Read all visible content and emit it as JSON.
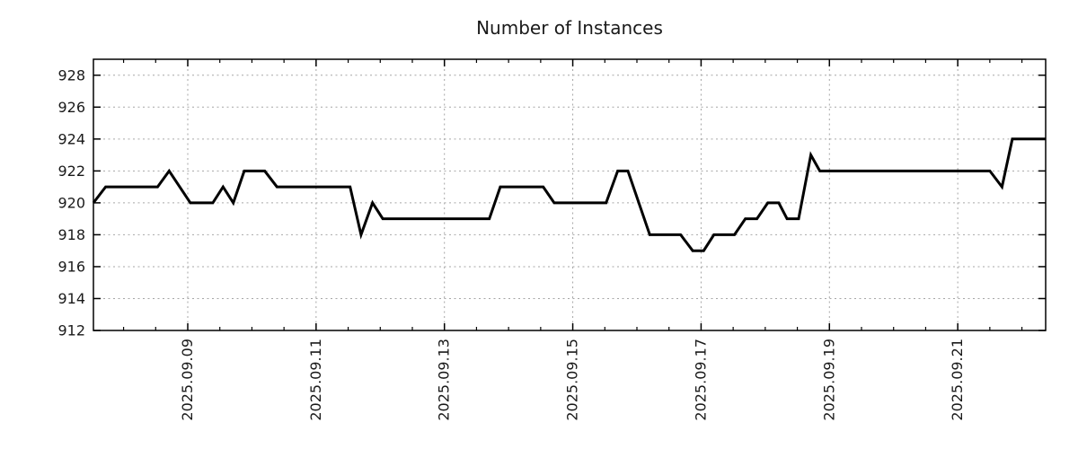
{
  "title": "Number of Instances",
  "colors": {
    "line": "#000000",
    "grid": "#a6a6a6",
    "axis": "#000000",
    "background": "#ffffff",
    "text": "#1a1a1a"
  },
  "chart_data": {
    "type": "line",
    "title": "Number of Instances",
    "xlabel": "",
    "ylabel": "",
    "grid": true,
    "legend": "none",
    "x_unit": "decimal day of September 2025",
    "xlim": [
      7.53,
      22.37
    ],
    "ylim": [
      912,
      929
    ],
    "y_ticks": [
      912,
      914,
      916,
      918,
      920,
      922,
      924,
      926,
      928
    ],
    "x_ticks": [
      {
        "t": 9,
        "label": "2025.09.09"
      },
      {
        "t": 11,
        "label": "2025.09.11"
      },
      {
        "t": 13,
        "label": "2025.09.13"
      },
      {
        "t": 15,
        "label": "2025.09.15"
      },
      {
        "t": 17,
        "label": "2025.09.17"
      },
      {
        "t": 19,
        "label": "2025.09.19"
      },
      {
        "t": 21,
        "label": "2025.09.21"
      }
    ],
    "x_minor_tick_start": 8.0,
    "x_minor_tick_end": 22.0,
    "x_minor_tick_step": 0.5,
    "series": [
      {
        "name": "instances",
        "color": "#000000",
        "points": [
          [
            7.53,
            920
          ],
          [
            7.72,
            921
          ],
          [
            8.53,
            921
          ],
          [
            8.71,
            922
          ],
          [
            9.04,
            920
          ],
          [
            9.39,
            920
          ],
          [
            9.55,
            921
          ],
          [
            9.71,
            920
          ],
          [
            9.88,
            922
          ],
          [
            10.2,
            922
          ],
          [
            10.39,
            921
          ],
          [
            11.53,
            921
          ],
          [
            11.7,
            918
          ],
          [
            11.88,
            920
          ],
          [
            12.04,
            919
          ],
          [
            13.7,
            919
          ],
          [
            13.87,
            921
          ],
          [
            14.54,
            921
          ],
          [
            14.71,
            920
          ],
          [
            15.52,
            920
          ],
          [
            15.7,
            922
          ],
          [
            15.86,
            922
          ],
          [
            16.2,
            918
          ],
          [
            16.68,
            918
          ],
          [
            16.87,
            917
          ],
          [
            17.04,
            917
          ],
          [
            17.2,
            918
          ],
          [
            17.52,
            918
          ],
          [
            17.69,
            919
          ],
          [
            17.87,
            919
          ],
          [
            18.04,
            920
          ],
          [
            18.21,
            920
          ],
          [
            18.34,
            919
          ],
          [
            18.52,
            919
          ],
          [
            18.71,
            923
          ],
          [
            18.85,
            922
          ],
          [
            21.5,
            922
          ],
          [
            21.69,
            921
          ],
          [
            21.85,
            924
          ],
          [
            22.37,
            924
          ]
        ]
      }
    ]
  }
}
